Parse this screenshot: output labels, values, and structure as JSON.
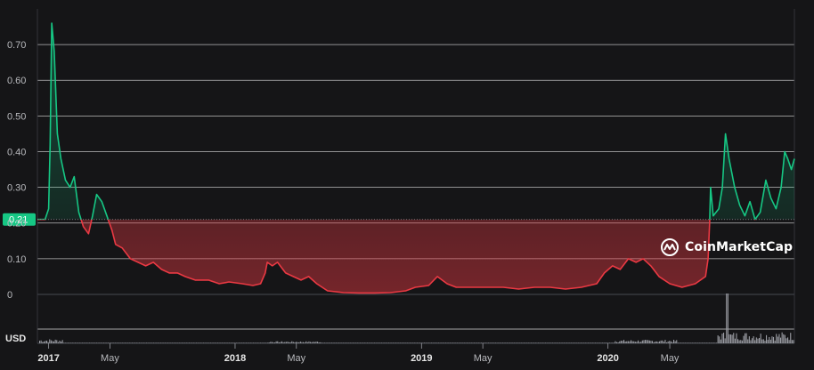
{
  "chart_data": {
    "type": "area",
    "currency_label": "USD",
    "reference_label": "0.21",
    "reference_value": 0.21,
    "y_ticks": [
      {
        "value": 0,
        "label": "0"
      },
      {
        "value": 0.1,
        "label": "0.10"
      },
      {
        "value": 0.2,
        "label": "0.20"
      },
      {
        "value": 0.3,
        "label": "0.30"
      },
      {
        "value": 0.4,
        "label": "0.40"
      },
      {
        "value": 0.5,
        "label": "0.50"
      },
      {
        "value": 0.6,
        "label": "0.60"
      },
      {
        "value": 0.7,
        "label": "0.70"
      }
    ],
    "ylim": [
      0,
      0.78
    ],
    "x_ticks": [
      {
        "date": "2017-01-01",
        "label": "2017",
        "bold": true
      },
      {
        "date": "2017-05-01",
        "label": "May",
        "bold": false
      },
      {
        "date": "2018-01-01",
        "label": "2018",
        "bold": true
      },
      {
        "date": "2018-05-01",
        "label": "May",
        "bold": false
      },
      {
        "date": "2019-01-01",
        "label": "2019",
        "bold": true
      },
      {
        "date": "2019-05-01",
        "label": "May",
        "bold": false
      },
      {
        "date": "2020-01-01",
        "label": "2020",
        "bold": true
      },
      {
        "date": "2020-05-01",
        "label": "May",
        "bold": false
      }
    ],
    "up_color": "#16c784",
    "down_color": "#ea3943",
    "series": [
      {
        "points": [
          [
            "2016-12-10",
            0.21
          ],
          [
            "2016-12-25",
            0.21
          ],
          [
            "2017-01-01",
            0.24
          ],
          [
            "2017-01-04",
            0.42
          ],
          [
            "2017-01-07",
            0.76
          ],
          [
            "2017-01-12",
            0.68
          ],
          [
            "2017-01-18",
            0.45
          ],
          [
            "2017-01-25",
            0.38
          ],
          [
            "2017-02-03",
            0.32
          ],
          [
            "2017-02-12",
            0.3
          ],
          [
            "2017-02-20",
            0.33
          ],
          [
            "2017-03-01",
            0.23
          ],
          [
            "2017-03-10",
            0.19
          ],
          [
            "2017-03-20",
            0.17
          ],
          [
            "2017-03-28",
            0.22
          ],
          [
            "2017-04-05",
            0.28
          ],
          [
            "2017-04-15",
            0.26
          ],
          [
            "2017-04-25",
            0.22
          ],
          [
            "2017-05-05",
            0.18
          ],
          [
            "2017-05-12",
            0.14
          ],
          [
            "2017-05-25",
            0.13
          ],
          [
            "2017-06-10",
            0.1
          ],
          [
            "2017-06-25",
            0.09
          ],
          [
            "2017-07-10",
            0.08
          ],
          [
            "2017-07-25",
            0.09
          ],
          [
            "2017-08-10",
            0.07
          ],
          [
            "2017-08-25",
            0.06
          ],
          [
            "2017-09-10",
            0.06
          ],
          [
            "2017-09-25",
            0.05
          ],
          [
            "2017-10-15",
            0.04
          ],
          [
            "2017-11-10",
            0.04
          ],
          [
            "2017-12-01",
            0.03
          ],
          [
            "2017-12-20",
            0.035
          ],
          [
            "2018-01-15",
            0.03
          ],
          [
            "2018-02-05",
            0.025
          ],
          [
            "2018-02-20",
            0.03
          ],
          [
            "2018-03-01",
            0.06
          ],
          [
            "2018-03-05",
            0.09
          ],
          [
            "2018-03-15",
            0.08
          ],
          [
            "2018-03-25",
            0.09
          ],
          [
            "2018-04-10",
            0.06
          ],
          [
            "2018-04-25",
            0.05
          ],
          [
            "2018-05-10",
            0.04
          ],
          [
            "2018-05-25",
            0.05
          ],
          [
            "2018-06-10",
            0.03
          ],
          [
            "2018-07-01",
            0.01
          ],
          [
            "2018-08-01",
            0.005
          ],
          [
            "2018-09-01",
            0.004
          ],
          [
            "2018-10-01",
            0.004
          ],
          [
            "2018-11-01",
            0.005
          ],
          [
            "2018-12-01",
            0.01
          ],
          [
            "2018-12-20",
            0.02
          ],
          [
            "2019-01-15",
            0.025
          ],
          [
            "2019-02-01",
            0.05
          ],
          [
            "2019-02-20",
            0.03
          ],
          [
            "2019-03-10",
            0.02
          ],
          [
            "2019-04-10",
            0.02
          ],
          [
            "2019-05-10",
            0.02
          ],
          [
            "2019-06-10",
            0.02
          ],
          [
            "2019-07-10",
            0.015
          ],
          [
            "2019-08-10",
            0.02
          ],
          [
            "2019-09-10",
            0.02
          ],
          [
            "2019-10-10",
            0.015
          ],
          [
            "2019-11-10",
            0.02
          ],
          [
            "2019-12-10",
            0.03
          ],
          [
            "2019-12-25",
            0.06
          ],
          [
            "2020-01-10",
            0.08
          ],
          [
            "2020-01-25",
            0.07
          ],
          [
            "2020-02-10",
            0.1
          ],
          [
            "2020-02-25",
            0.09
          ],
          [
            "2020-03-10",
            0.1
          ],
          [
            "2020-03-25",
            0.08
          ],
          [
            "2020-04-10",
            0.05
          ],
          [
            "2020-05-01",
            0.03
          ],
          [
            "2020-05-25",
            0.02
          ],
          [
            "2020-06-20",
            0.03
          ],
          [
            "2020-07-10",
            0.05
          ],
          [
            "2020-07-15",
            0.1
          ],
          [
            "2020-07-18",
            0.2
          ],
          [
            "2020-07-20",
            0.3
          ],
          [
            "2020-07-25",
            0.22
          ],
          [
            "2020-08-05",
            0.24
          ],
          [
            "2020-08-12",
            0.3
          ],
          [
            "2020-08-18",
            0.45
          ],
          [
            "2020-08-25",
            0.38
          ],
          [
            "2020-09-05",
            0.3
          ],
          [
            "2020-09-15",
            0.25
          ],
          [
            "2020-09-25",
            0.22
          ],
          [
            "2020-10-05",
            0.26
          ],
          [
            "2020-10-15",
            0.21
          ],
          [
            "2020-10-25",
            0.23
          ],
          [
            "2020-11-05",
            0.32
          ],
          [
            "2020-11-15",
            0.27
          ],
          [
            "2020-11-25",
            0.24
          ],
          [
            "2020-12-05",
            0.3
          ],
          [
            "2020-12-12",
            0.4
          ],
          [
            "2020-12-18",
            0.38
          ],
          [
            "2020-12-25",
            0.35
          ],
          [
            "2020-12-31",
            0.38
          ]
        ]
      }
    ]
  },
  "watermark": {
    "text": "CoinMarketCap"
  }
}
